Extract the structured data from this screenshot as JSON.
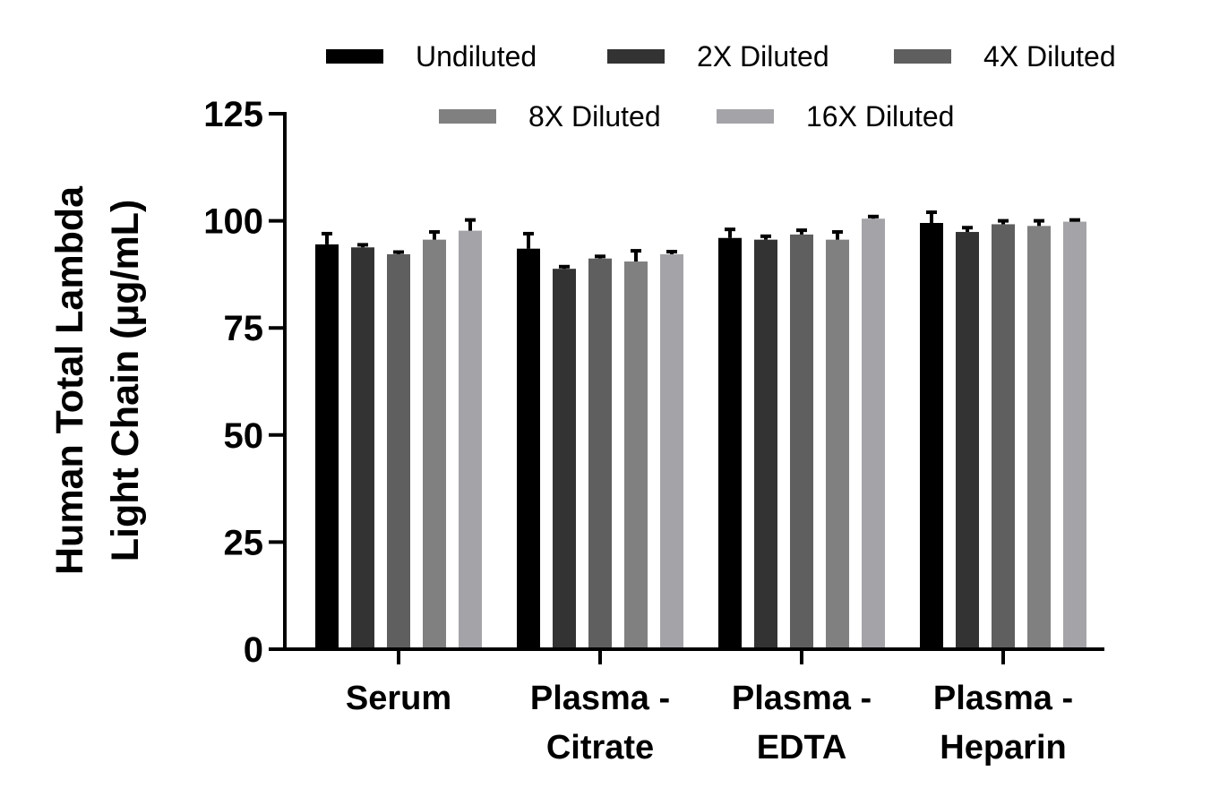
{
  "chart_data": {
    "type": "bar",
    "ylabel_lines": [
      "Human Total Lambda",
      "Light Chain (µg/mL)"
    ],
    "ylim": [
      0,
      125
    ],
    "yticks": [
      0,
      25,
      50,
      75,
      100,
      125
    ],
    "categories": [
      [
        "Serum"
      ],
      [
        "Plasma -",
        "Citrate"
      ],
      [
        "Plasma -",
        "EDTA"
      ],
      [
        "Plasma -",
        "Heparin"
      ]
    ],
    "series": [
      {
        "name": "Undiluted",
        "color": "#000000",
        "values": [
          94.5,
          93.5,
          96.0,
          99.5
        ],
        "errors": [
          2.5,
          3.5,
          2.0,
          2.5
        ]
      },
      {
        "name": "2X Diluted",
        "color": "#333333",
        "values": [
          93.8,
          88.8,
          95.6,
          97.4
        ],
        "errors": [
          0.6,
          0.5,
          0.8,
          1.0
        ]
      },
      {
        "name": "4X Diluted",
        "color": "#5f5f5f",
        "values": [
          92.2,
          91.2,
          96.8,
          99.2
        ],
        "errors": [
          0.5,
          0.5,
          1.0,
          0.8
        ]
      },
      {
        "name": "8X Diluted",
        "color": "#808080",
        "values": [
          95.6,
          90.5,
          95.6,
          98.8
        ],
        "errors": [
          1.8,
          2.5,
          1.8,
          1.2
        ]
      },
      {
        "name": "16X Diluted",
        "color": "#a4a4a8",
        "values": [
          97.7,
          92.2,
          100.5,
          99.8
        ],
        "errors": [
          2.5,
          0.6,
          0.5,
          0.4
        ]
      }
    ],
    "legend_position": "top",
    "grid": false
  }
}
